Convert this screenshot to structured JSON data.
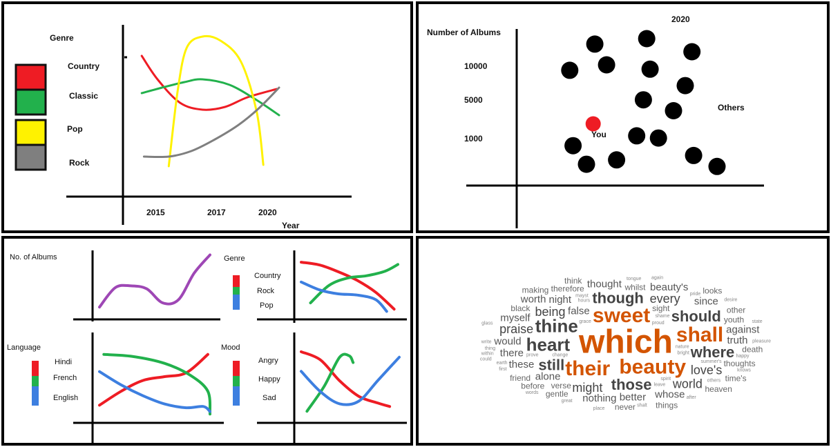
{
  "chart_data": [
    {
      "type": "line",
      "title": "",
      "xlabel": "Year",
      "ylabel": "",
      "x_ticks": [
        "2015",
        "2017",
        "2020"
      ],
      "legend_title": "Genre",
      "legend_position": "left",
      "series": [
        {
          "name": "Country",
          "color": "#ee1c24",
          "values": [
            [
              2014.3,
              9.0
            ],
            [
              2015.0,
              7.3
            ],
            [
              2016.0,
              5.6
            ],
            [
              2017.0,
              5.1
            ],
            [
              2018.0,
              5.3
            ],
            [
              2019.0,
              6.0
            ],
            [
              2020.3,
              6.6
            ]
          ]
        },
        {
          "name": "Classic",
          "color": "#22b14c",
          "values": [
            [
              2014.3,
              6.3
            ],
            [
              2015.2,
              6.7
            ],
            [
              2016.2,
              7.1
            ],
            [
              2017.0,
              7.3
            ],
            [
              2018.2,
              6.9
            ],
            [
              2019.4,
              5.8
            ],
            [
              2020.4,
              4.7
            ]
          ]
        },
        {
          "name": "Pop",
          "color": "#fff200",
          "values": [
            [
              2015.5,
              1.0
            ],
            [
              2015.9,
              6.5
            ],
            [
              2016.3,
              9.6
            ],
            [
              2017.0,
              10.4
            ],
            [
              2017.8,
              10.1
            ],
            [
              2018.7,
              8.6
            ],
            [
              2019.4,
              5.0
            ],
            [
              2019.7,
              1.1
            ]
          ]
        },
        {
          "name": "Rock",
          "color": "#7f7f7f",
          "values": [
            [
              2014.4,
              1.7
            ],
            [
              2015.5,
              1.7
            ],
            [
              2016.5,
              2.1
            ],
            [
              2017.5,
              2.9
            ],
            [
              2018.6,
              4.0
            ],
            [
              2019.5,
              5.2
            ],
            [
              2020.4,
              6.7
            ]
          ]
        }
      ]
    },
    {
      "type": "scatter",
      "title": "2020",
      "xlabel": "",
      "ylabel": "Number of Albums",
      "y_ticks": [
        "10000",
        "5000",
        "1000"
      ],
      "series": [
        {
          "name": "You",
          "color": "#ee1c24",
          "points": [
            [
              3.0,
              4200
            ]
          ]
        },
        {
          "name": "Others",
          "color": "#000000",
          "points": [
            [
              1.6,
              9100
            ],
            [
              1.8,
              2200
            ],
            [
              2.6,
              500
            ],
            [
              3.1,
              11500
            ],
            [
              3.8,
              9600
            ],
            [
              4.4,
              900
            ],
            [
              5.6,
              3100
            ],
            [
              6.0,
              6400
            ],
            [
              6.2,
              12000
            ],
            [
              6.4,
              9200
            ],
            [
              6.9,
              2900
            ],
            [
              7.8,
              5400
            ],
            [
              8.5,
              7700
            ],
            [
              8.9,
              10800
            ],
            [
              9.0,
              1300
            ],
            [
              10.4,
              300
            ]
          ]
        }
      ]
    },
    {
      "type": "line",
      "ylabel": "No. of Albums",
      "series": [
        {
          "name": "",
          "color": "#9e47b5",
          "values": [
            [
              0,
              1.0
            ],
            [
              1,
              4.2
            ],
            [
              2,
              4.5
            ],
            [
              3,
              4.0
            ],
            [
              4,
              1.7
            ],
            [
              5,
              2.2
            ],
            [
              6,
              6.6
            ],
            [
              7,
              9.6
            ]
          ]
        }
      ]
    },
    {
      "type": "line",
      "legend_title": "Genre",
      "series": [
        {
          "name": "Country",
          "color": "#ee1c24",
          "values": [
            [
              0,
              9.5
            ],
            [
              1,
              9.0
            ],
            [
              2,
              7.8
            ],
            [
              3,
              6.3
            ],
            [
              4,
              4.2
            ],
            [
              5,
              1.2
            ]
          ]
        },
        {
          "name": "Rock",
          "color": "#22b14c",
          "values": [
            [
              0.5,
              2.3
            ],
            [
              1.5,
              5.4
            ],
            [
              2.5,
              6.7
            ],
            [
              3.5,
              7.1
            ],
            [
              4.5,
              7.9
            ],
            [
              5.2,
              9.1
            ]
          ]
        },
        {
          "name": "Pop",
          "color": "#3d7fe0",
          "values": [
            [
              0,
              6.0
            ],
            [
              1,
              4.6
            ],
            [
              2,
              3.9
            ],
            [
              3,
              3.7
            ],
            [
              4,
              2.9
            ],
            [
              4.6,
              0.8
            ]
          ]
        }
      ]
    },
    {
      "type": "line",
      "legend_title": "Language",
      "series": [
        {
          "name": "Hindi",
          "color": "#ee1c24",
          "values": [
            [
              0,
              1.8
            ],
            [
              1,
              4.0
            ],
            [
              2,
              5.7
            ],
            [
              3,
              6.3
            ],
            [
              4,
              6.9
            ],
            [
              5,
              9.8
            ]
          ]
        },
        {
          "name": "French",
          "color": "#22b14c",
          "values": [
            [
              0.2,
              9.8
            ],
            [
              1.5,
              9.5
            ],
            [
              3,
              8.4
            ],
            [
              4.2,
              6.5
            ],
            [
              5.0,
              4.0
            ],
            [
              5.1,
              0.4
            ]
          ]
        },
        {
          "name": "English",
          "color": "#3d7fe0",
          "values": [
            [
              0,
              7.1
            ],
            [
              1,
              5.0
            ],
            [
              2,
              3.3
            ],
            [
              3,
              2.0
            ],
            [
              4,
              1.4
            ],
            [
              4.8,
              1.6
            ],
            [
              5.1,
              0.8
            ]
          ]
        }
      ]
    },
    {
      "type": "line",
      "legend_title": "Mood",
      "series": [
        {
          "name": "Angry",
          "color": "#ee1c24",
          "values": [
            [
              0,
              9.6
            ],
            [
              1,
              8.4
            ],
            [
              2,
              5.3
            ],
            [
              3,
              3.0
            ],
            [
              4,
              2.0
            ],
            [
              4.6,
              1.5
            ]
          ]
        },
        {
          "name": "Happy",
          "color": "#22b14c",
          "values": [
            [
              0.3,
              0.8
            ],
            [
              1.2,
              4.5
            ],
            [
              2.0,
              8.8
            ],
            [
              2.5,
              9.0
            ],
            [
              2.7,
              8.0
            ]
          ]
        },
        {
          "name": "Sad",
          "color": "#3d7fe0",
          "values": [
            [
              0,
              6.7
            ],
            [
              1,
              3.7
            ],
            [
              2,
              1.9
            ],
            [
              3,
              2.3
            ],
            [
              4,
              5.4
            ],
            [
              5.1,
              8.8
            ]
          ]
        }
      ]
    },
    {
      "type": "wordcloud",
      "words": [
        {
          "text": "which",
          "weight": 10,
          "color": "#d35400"
        },
        {
          "text": "sweet",
          "weight": 7,
          "color": "#d35400"
        },
        {
          "text": "beauty",
          "weight": 7,
          "color": "#d35400"
        },
        {
          "text": "shall",
          "weight": 7,
          "color": "#d35400"
        },
        {
          "text": "their",
          "weight": 7,
          "color": "#d35400"
        },
        {
          "text": "heart",
          "weight": 6,
          "color": "#444444"
        },
        {
          "text": "thine",
          "weight": 6,
          "color": "#444444"
        },
        {
          "text": "should",
          "weight": 5,
          "color": "#444444"
        },
        {
          "text": "where",
          "weight": 5,
          "color": "#444444"
        },
        {
          "text": "those",
          "weight": 5,
          "color": "#444444"
        },
        {
          "text": "though",
          "weight": 5,
          "color": "#444444"
        },
        {
          "text": "still",
          "weight": 5,
          "color": "#444444"
        },
        {
          "text": "being",
          "weight": 4,
          "color": "#444444"
        },
        {
          "text": "every",
          "weight": 4,
          "color": "#444444"
        },
        {
          "text": "might",
          "weight": 4,
          "color": "#444444"
        },
        {
          "text": "love's",
          "weight": 4,
          "color": "#444444"
        },
        {
          "text": "praise",
          "weight": 4,
          "color": "#444444"
        },
        {
          "text": "world",
          "weight": 4,
          "color": "#444444"
        },
        {
          "text": "night",
          "weight": 3,
          "color": "#555555"
        },
        {
          "text": "alone",
          "weight": 3,
          "color": "#555555"
        },
        {
          "text": "truth",
          "weight": 3,
          "color": "#555555"
        },
        {
          "text": "these",
          "weight": 3,
          "color": "#555555"
        },
        {
          "text": "since",
          "weight": 3,
          "color": "#555555"
        },
        {
          "text": "whose",
          "weight": 3,
          "color": "#555555"
        },
        {
          "text": "myself",
          "weight": 3,
          "color": "#555555"
        },
        {
          "text": "better",
          "weight": 3,
          "color": "#555555"
        },
        {
          "text": "would",
          "weight": 3,
          "color": "#555555"
        },
        {
          "text": "there",
          "weight": 3,
          "color": "#555555"
        },
        {
          "text": "against",
          "weight": 3,
          "color": "#555555"
        },
        {
          "text": "nothing",
          "weight": 3,
          "color": "#555555"
        },
        {
          "text": "thought",
          "weight": 3,
          "color": "#555555"
        },
        {
          "text": "beauty's",
          "weight": 3,
          "color": "#555555"
        },
        {
          "text": "false",
          "weight": 3,
          "color": "#555555"
        },
        {
          "text": "worth",
          "weight": 3,
          "color": "#555555"
        },
        {
          "text": "thoughts",
          "weight": 2,
          "color": "#666666"
        },
        {
          "text": "therefore",
          "weight": 2,
          "color": "#666666"
        },
        {
          "text": "youth",
          "weight": 2,
          "color": "#666666"
        },
        {
          "text": "death",
          "weight": 2,
          "color": "#666666"
        },
        {
          "text": "gentle",
          "weight": 2,
          "color": "#666666"
        },
        {
          "text": "heaven",
          "weight": 2,
          "color": "#666666"
        },
        {
          "text": "time's",
          "weight": 2,
          "color": "#666666"
        },
        {
          "text": "sight",
          "weight": 2,
          "color": "#666666"
        },
        {
          "text": "other",
          "weight": 2,
          "color": "#666666"
        },
        {
          "text": "verse",
          "weight": 2,
          "color": "#666666"
        },
        {
          "text": "before",
          "weight": 2,
          "color": "#666666"
        },
        {
          "text": "friend",
          "weight": 2,
          "color": "#666666"
        },
        {
          "text": "never",
          "weight": 2,
          "color": "#666666"
        },
        {
          "text": "think",
          "weight": 2,
          "color": "#666666"
        },
        {
          "text": "black",
          "weight": 2,
          "color": "#666666"
        },
        {
          "text": "looks",
          "weight": 2,
          "color": "#666666"
        },
        {
          "text": "whilst",
          "weight": 2,
          "color": "#666666"
        },
        {
          "text": "things",
          "weight": 2,
          "color": "#666666"
        },
        {
          "text": "making",
          "weight": 2,
          "color": "#666666"
        },
        {
          "text": "summer's",
          "weight": 1,
          "color": "#888888"
        },
        {
          "text": "proud",
          "weight": 1,
          "color": "#888888"
        },
        {
          "text": "bright",
          "weight": 1,
          "color": "#888888"
        },
        {
          "text": "hours",
          "weight": 1,
          "color": "#888888"
        },
        {
          "text": "others",
          "weight": 1,
          "color": "#888888"
        },
        {
          "text": "shame",
          "weight": 1,
          "color": "#888888"
        },
        {
          "text": "tongue",
          "weight": 1,
          "color": "#888888"
        },
        {
          "text": "leave",
          "weight": 1,
          "color": "#888888"
        },
        {
          "text": "prove",
          "weight": 1,
          "color": "#888888"
        },
        {
          "text": "thing",
          "weight": 1,
          "color": "#888888"
        },
        {
          "text": "mayst",
          "weight": 1,
          "color": "#888888"
        },
        {
          "text": "desire",
          "weight": 1,
          "color": "#888888"
        },
        {
          "text": "change",
          "weight": 1,
          "color": "#888888"
        },
        {
          "text": "pleasure",
          "weight": 1,
          "color": "#888888"
        },
        {
          "text": "pride",
          "weight": 1,
          "color": "#888888"
        },
        {
          "text": "grace",
          "weight": 1,
          "color": "#888888"
        },
        {
          "text": "knows",
          "weight": 1,
          "color": "#888888"
        },
        {
          "text": "happy",
          "weight": 1,
          "color": "#888888"
        },
        {
          "text": "state",
          "weight": 1,
          "color": "#888888"
        },
        {
          "text": "earth",
          "weight": 1,
          "color": "#888888"
        },
        {
          "text": "within",
          "weight": 1,
          "color": "#888888"
        },
        {
          "text": "great",
          "weight": 1,
          "color": "#888888"
        },
        {
          "text": "after",
          "weight": 1,
          "color": "#888888"
        },
        {
          "text": "first",
          "weight": 1,
          "color": "#888888"
        },
        {
          "text": "place",
          "weight": 1,
          "color": "#888888"
        },
        {
          "text": "words",
          "weight": 1,
          "color": "#888888"
        },
        {
          "text": "nature",
          "weight": 1,
          "color": "#888888"
        },
        {
          "text": "spirit",
          "weight": 1,
          "color": "#888888"
        },
        {
          "text": "write",
          "weight": 1,
          "color": "#888888"
        },
        {
          "text": "shalt",
          "weight": 1,
          "color": "#888888"
        },
        {
          "text": "again",
          "weight": 1,
          "color": "#888888"
        },
        {
          "text": "could",
          "weight": 1,
          "color": "#888888"
        },
        {
          "text": "glass",
          "weight": 1,
          "color": "#888888"
        }
      ]
    }
  ]
}
